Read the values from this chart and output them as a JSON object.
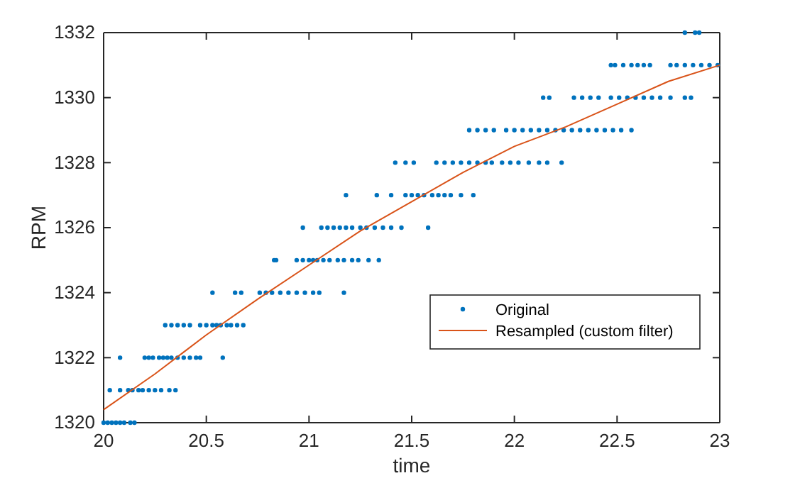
{
  "chart_data": {
    "type": "scatter",
    "xlabel": "time",
    "ylabel": "RPM",
    "xlim": [
      20,
      23
    ],
    "ylim": [
      1320,
      1332
    ],
    "xticks": [
      20,
      20.5,
      21,
      21.5,
      22,
      22.5,
      23
    ],
    "yticks": [
      1320,
      1322,
      1324,
      1326,
      1328,
      1330,
      1332
    ],
    "grid": false,
    "legend": "bottom right",
    "series": [
      {
        "name": "Original",
        "marker": "circle",
        "color": "#0072bd",
        "x": [
          20.0,
          20.02,
          20.04,
          20.06,
          20.08,
          20.1,
          20.13,
          20.15,
          20.03,
          20.08,
          20.12,
          20.14,
          20.17,
          20.19,
          20.22,
          20.25,
          20.28,
          20.32,
          20.35,
          20.08,
          20.2,
          20.22,
          20.24,
          20.27,
          20.29,
          20.31,
          20.33,
          20.36,
          20.39,
          20.42,
          20.45,
          20.47,
          20.58,
          20.3,
          20.33,
          20.36,
          20.39,
          20.42,
          20.47,
          20.5,
          20.53,
          20.55,
          20.57,
          20.6,
          20.62,
          20.65,
          20.68,
          20.53,
          20.64,
          20.67,
          20.76,
          20.79,
          20.82,
          20.86,
          20.9,
          20.94,
          20.98,
          21.02,
          21.05,
          21.17,
          20.83,
          20.84,
          20.94,
          20.97,
          21.0,
          21.02,
          21.04,
          21.07,
          21.1,
          21.14,
          21.17,
          21.21,
          21.24,
          21.29,
          21.34,
          20.97,
          21.06,
          21.09,
          21.12,
          21.15,
          21.18,
          21.21,
          21.25,
          21.28,
          21.32,
          21.36,
          21.4,
          21.45,
          21.58,
          21.18,
          21.33,
          21.4,
          21.47,
          21.5,
          21.53,
          21.56,
          21.6,
          21.63,
          21.66,
          21.69,
          21.74,
          21.8,
          21.42,
          21.47,
          21.51,
          21.62,
          21.66,
          21.7,
          21.74,
          21.78,
          21.82,
          21.86,
          21.89,
          21.94,
          21.98,
          22.02,
          22.07,
          22.12,
          22.16,
          22.23,
          21.78,
          21.82,
          21.86,
          21.9,
          21.96,
          22.0,
          22.04,
          22.08,
          22.12,
          22.16,
          22.2,
          22.24,
          22.28,
          22.32,
          22.36,
          22.4,
          22.44,
          22.48,
          22.52,
          22.57,
          22.14,
          22.17,
          22.29,
          22.33,
          22.37,
          22.41,
          22.47,
          22.51,
          22.55,
          22.59,
          22.63,
          22.67,
          22.71,
          22.76,
          22.83,
          22.86,
          22.47,
          22.49,
          22.53,
          22.57,
          22.6,
          22.63,
          22.66,
          22.76,
          22.79,
          22.83,
          22.87,
          22.91,
          22.95,
          22.99,
          22.83,
          22.88,
          22.9
        ],
        "values": [
          1320,
          1320,
          1320,
          1320,
          1320,
          1320,
          1320,
          1320,
          1321,
          1321,
          1321,
          1321,
          1321,
          1321,
          1321,
          1321,
          1321,
          1321,
          1321,
          1322,
          1322,
          1322,
          1322,
          1322,
          1322,
          1322,
          1322,
          1322,
          1322,
          1322,
          1322,
          1322,
          1322,
          1323,
          1323,
          1323,
          1323,
          1323,
          1323,
          1323,
          1323,
          1323,
          1323,
          1323,
          1323,
          1323,
          1323,
          1324,
          1324,
          1324,
          1324,
          1324,
          1324,
          1324,
          1324,
          1324,
          1324,
          1324,
          1324,
          1324,
          1325,
          1325,
          1325,
          1325,
          1325,
          1325,
          1325,
          1325,
          1325,
          1325,
          1325,
          1325,
          1325,
          1325,
          1325,
          1326,
          1326,
          1326,
          1326,
          1326,
          1326,
          1326,
          1326,
          1326,
          1326,
          1326,
          1326,
          1326,
          1326,
          1327,
          1327,
          1327,
          1327,
          1327,
          1327,
          1327,
          1327,
          1327,
          1327,
          1327,
          1327,
          1327,
          1328,
          1328,
          1328,
          1328,
          1328,
          1328,
          1328,
          1328,
          1328,
          1328,
          1328,
          1328,
          1328,
          1328,
          1328,
          1328,
          1328,
          1328,
          1329,
          1329,
          1329,
          1329,
          1329,
          1329,
          1329,
          1329,
          1329,
          1329,
          1329,
          1329,
          1329,
          1329,
          1329,
          1329,
          1329,
          1329,
          1329,
          1329,
          1330,
          1330,
          1330,
          1330,
          1330,
          1330,
          1330,
          1330,
          1330,
          1330,
          1330,
          1330,
          1330,
          1330,
          1330,
          1330,
          1331,
          1331,
          1331,
          1331,
          1331,
          1331,
          1331,
          1331,
          1331,
          1331,
          1331,
          1331,
          1331,
          1331,
          1332,
          1332,
          1332
        ]
      },
      {
        "name": "Resampled (custom filter)",
        "type": "line",
        "marker": "none",
        "color": "#d95319",
        "x": [
          20,
          20.25,
          20.5,
          20.75,
          21,
          21.25,
          21.5,
          21.75,
          22,
          22.25,
          22.5,
          22.75,
          23
        ],
        "values": [
          1320.4,
          1321.5,
          1322.7,
          1323.8,
          1324.85,
          1325.9,
          1326.8,
          1327.7,
          1328.5,
          1329.1,
          1329.8,
          1330.5,
          1331.0
        ]
      }
    ]
  }
}
